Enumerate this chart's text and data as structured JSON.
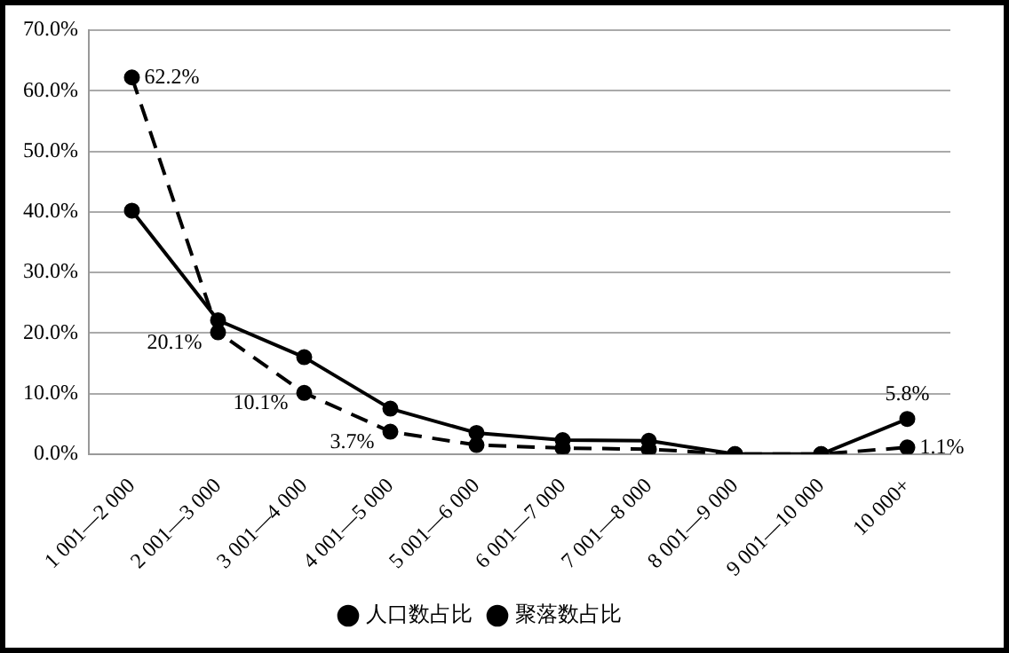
{
  "chart_data": {
    "type": "line",
    "categories": [
      "1 001—2 000",
      "2 001—3 000",
      "3 001—4 000",
      "4 001—5 000",
      "5 001—6 000",
      "6 001—7 000",
      "7 001—8 000",
      "8 001—9 000",
      "9 001—10 000",
      "10 000+"
    ],
    "series": [
      {
        "name": "人口数占比",
        "color": "#000000",
        "line_style": "solid",
        "values": [
          40.2,
          22.1,
          16.0,
          7.5,
          3.5,
          2.3,
          2.2,
          0,
          0,
          5.8
        ],
        "value_labels": [
          null,
          null,
          null,
          null,
          null,
          null,
          null,
          null,
          null,
          "5.8%"
        ]
      },
      {
        "name": "聚落数占比",
        "color": "#000000",
        "line_style": "dashed",
        "values": [
          62.2,
          20.1,
          10.1,
          3.7,
          1.5,
          1.0,
          0.8,
          0,
          0,
          1.1
        ],
        "value_labels": [
          "62.2%",
          "20.1%",
          "10.1%",
          "3.7%",
          null,
          null,
          null,
          null,
          null,
          "1.1%"
        ]
      }
    ],
    "ylim": [
      0,
      70
    ],
    "yticks": [
      {
        "value": 0,
        "label": "0.0%"
      },
      {
        "value": 10,
        "label": "10.0%"
      },
      {
        "value": 20,
        "label": "20.0%"
      },
      {
        "value": 30,
        "label": "30.0%"
      },
      {
        "value": 40,
        "label": "40.0%"
      },
      {
        "value": 50,
        "label": "50.0%"
      },
      {
        "value": 60,
        "label": "60.0%"
      },
      {
        "value": 70,
        "label": "70.0%"
      }
    ],
    "grid": "y",
    "legend": "bottom",
    "marker": "circle"
  }
}
